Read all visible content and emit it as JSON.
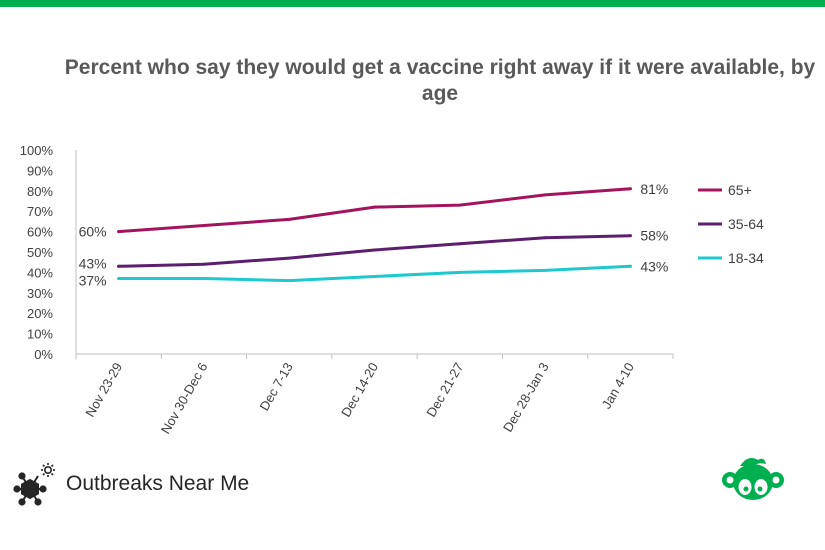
{
  "title": "Percent who say they would get a vaccine right away if it were available, by age",
  "brand": {
    "name": "Outbreaks Near Me",
    "icon": "virus-molecule-icon"
  },
  "partner": {
    "icon": "monkey-logo-icon",
    "color": "#00b050"
  },
  "colors": {
    "accent": "#00b050",
    "grid": "#d9d9d9",
    "text": "#595959"
  },
  "chart_data": {
    "type": "line",
    "title": "Percent who say they would get a vaccine right away if it were available, by age",
    "xlabel": "",
    "ylabel": "",
    "categories": [
      "Nov 23-29",
      "Nov 30-Dec 6",
      "Dec 7-13",
      "Dec 14-20",
      "Dec 21-27",
      "Dec 28-Jan 3",
      "Jan 4-10"
    ],
    "yticks": [
      "0%",
      "10%",
      "20%",
      "30%",
      "40%",
      "50%",
      "60%",
      "70%",
      "80%",
      "90%",
      "100%"
    ],
    "ylim": [
      0,
      100
    ],
    "grid": false,
    "legend": "right",
    "series": [
      {
        "name": "65+",
        "color": "#a3135e",
        "values": [
          60,
          63,
          66,
          72,
          73,
          78,
          81
        ],
        "start_label": "60%",
        "end_label": "81%"
      },
      {
        "name": "35-64",
        "color": "#5c1e6e",
        "values": [
          43,
          44,
          47,
          51,
          54,
          57,
          58
        ],
        "start_label": "43%",
        "end_label": "58%"
      },
      {
        "name": "18-34",
        "color": "#1ec8cf",
        "values": [
          37,
          37,
          36,
          38,
          40,
          41,
          43
        ],
        "start_label": "37%",
        "end_label": "43%"
      }
    ]
  }
}
